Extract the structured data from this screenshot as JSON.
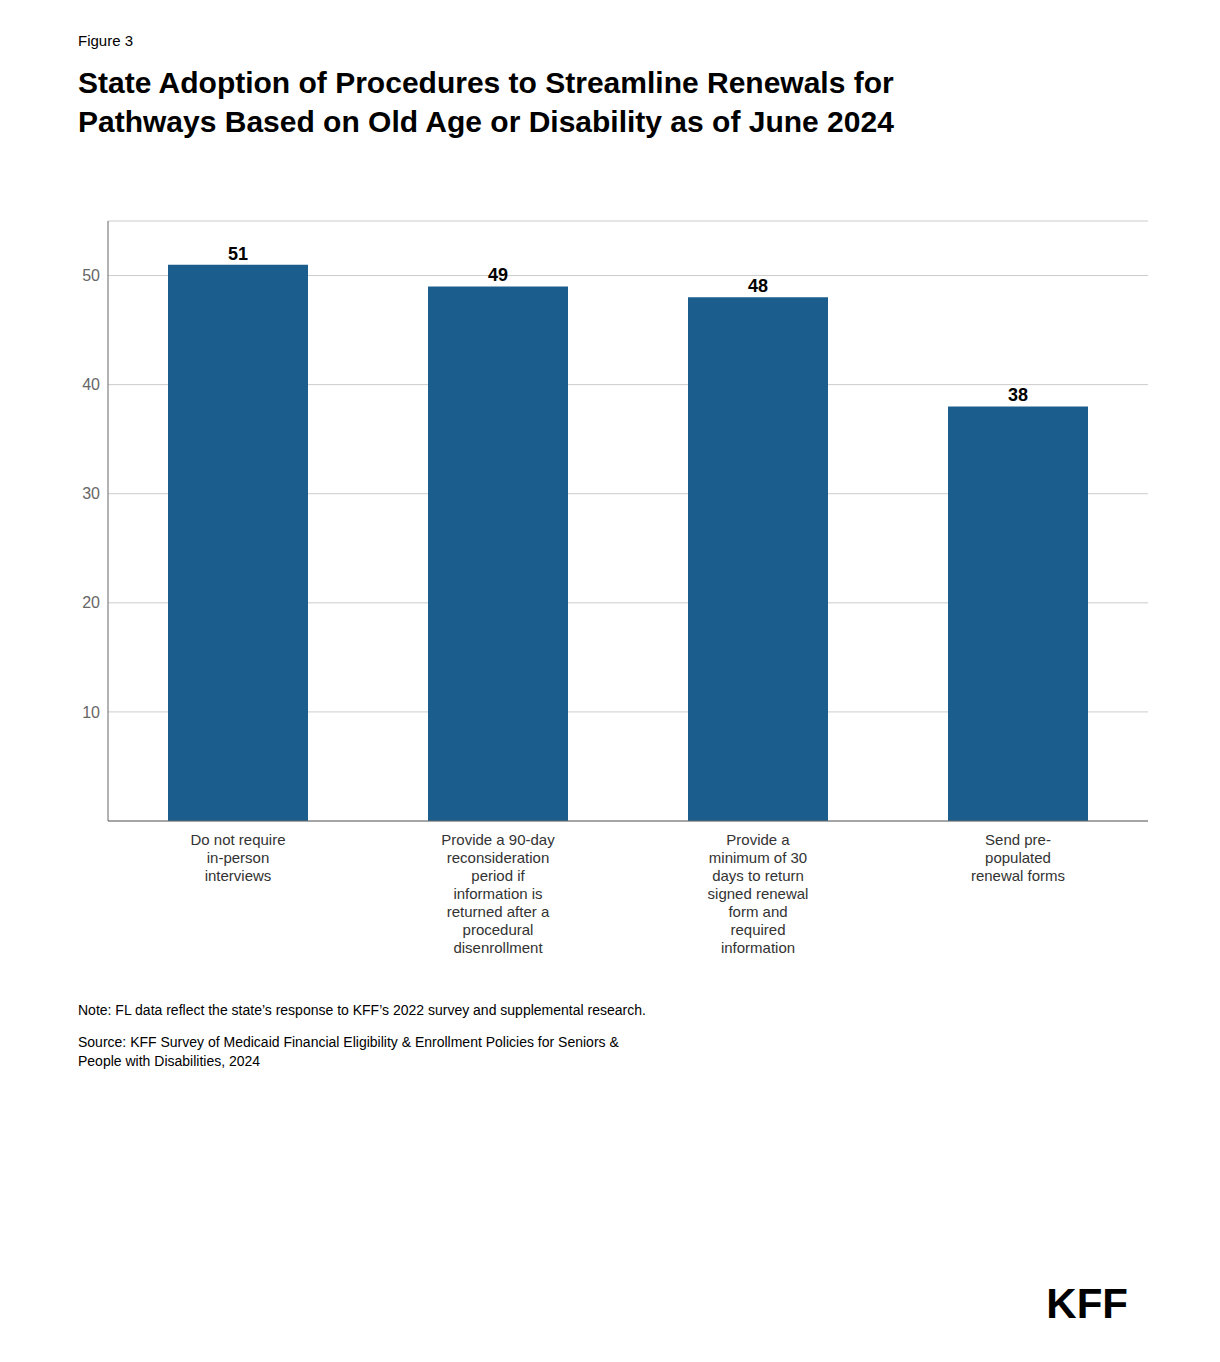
{
  "chart_data": {
    "type": "bar",
    "title": "State Adoption of Procedures to Streamline Renewals for\nPathways Based on Old Age or Disability as of June 2024",
    "categories": [
      "Do not require\nin-person\ninterviews",
      "Provide a 90-day\nreconsideration\nperiod if\ninformation is\nreturned after a\nprocedural\ndisenrollment",
      "Provide a\nminimum of 30\ndays to return\nsigned renewal\nform and\nrequired\ninformation",
      "Send pre-\npopulated\nrenewal forms"
    ],
    "values": [
      51,
      49,
      48,
      38
    ],
    "color": "#1b5e8e",
    "ylim": [
      0,
      55
    ],
    "yticks": [
      10,
      20,
      30,
      40,
      50
    ],
    "grid": true,
    "data_labels": true,
    "annotations": [
      "Figure 3",
      "Note: FL data reflect the state’s response to KFF’s 2022 survey and supplemental research.",
      "Source: KFF Survey of Medicaid Financial Eligibility & Enrollment Policies for Seniors &\nPeople with Disabilities, 2024",
      "KFF"
    ]
  }
}
